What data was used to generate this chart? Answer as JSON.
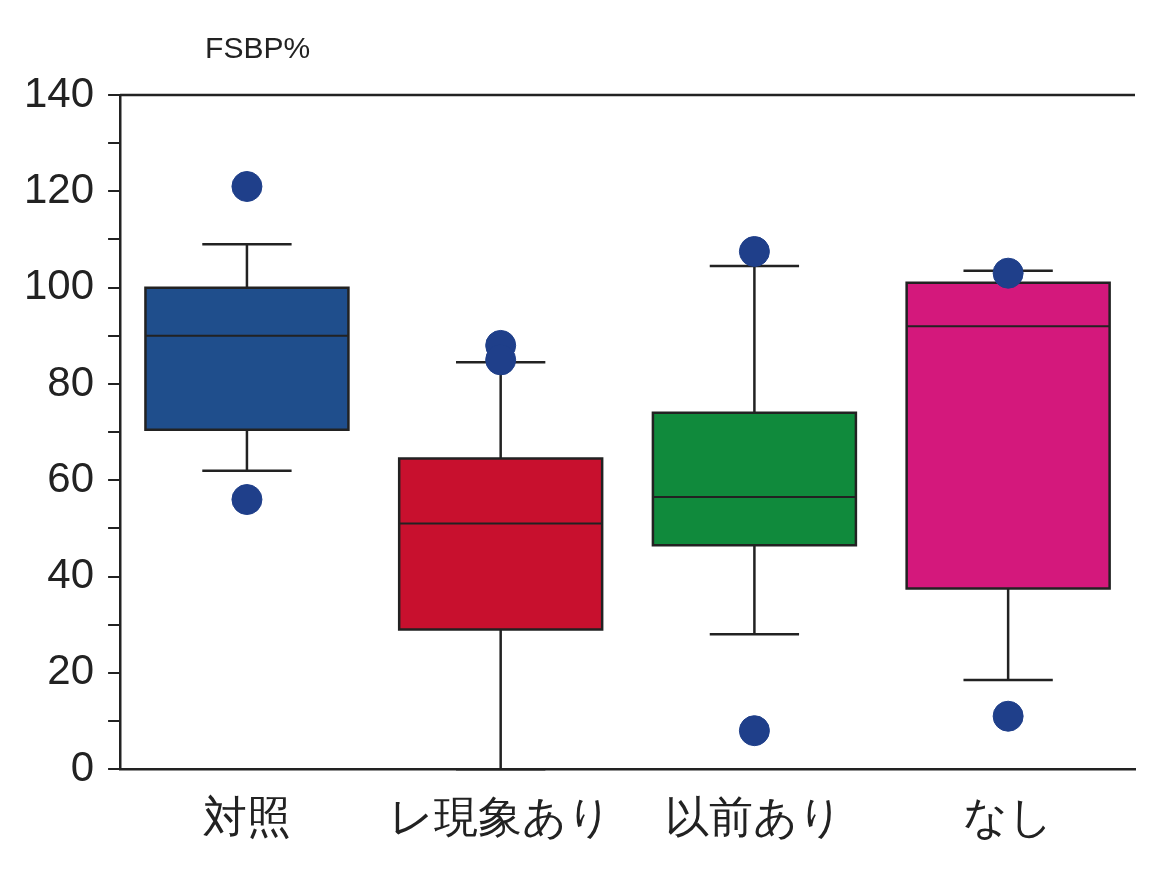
{
  "chart_data": {
    "type": "box",
    "ylabel": "FSBP%",
    "categories": [
      "対照",
      "レ現象あり",
      "以前あり",
      "なし"
    ],
    "colors": [
      "#1f4e8c",
      "#c8102e",
      "#108a3c",
      "#d4187c"
    ],
    "boxes": [
      {
        "low": 62,
        "q1": 70.5,
        "median": 90,
        "q3": 100,
        "high": 109,
        "outliers": [
          121,
          56
        ]
      },
      {
        "low": 0,
        "q1": 29,
        "median": 51,
        "q3": 64.5,
        "high": 84.5,
        "outliers": [
          88,
          85
        ]
      },
      {
        "low": 28,
        "q1": 46.5,
        "median": 56.5,
        "q3": 74,
        "high": 104.5,
        "outliers": [
          107.5,
          8
        ]
      },
      {
        "low": 18.5,
        "q1": 37.5,
        "median": 92,
        "q3": 101,
        "high": 103.5,
        "outliers": [
          103,
          11
        ]
      }
    ],
    "ylim": [
      0,
      140
    ],
    "yticks": [
      0,
      {
        "value": 10,
        "label": null
      },
      20,
      {
        "value": 30,
        "label": null
      },
      40,
      {
        "value": 50,
        "label": null
      },
      60,
      {
        "value": 70,
        "label": null
      },
      80,
      {
        "value": 90,
        "label": null
      },
      100,
      {
        "value": 110,
        "label": null
      },
      120,
      {
        "value": 130,
        "label": null
      },
      140
    ],
    "grid": false,
    "legend": false
  }
}
